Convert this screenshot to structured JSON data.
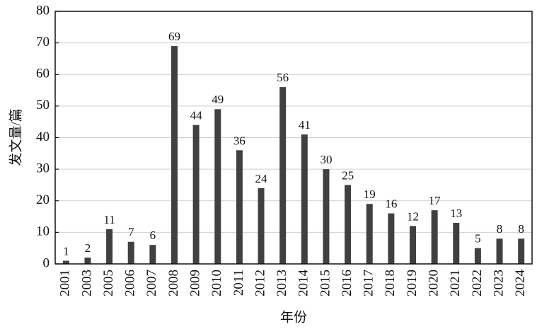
{
  "chart_data": {
    "type": "bar",
    "x_label": "年份",
    "y_label": "发文量/篇",
    "categories": [
      "2001",
      "2003",
      "2005",
      "2006",
      "2007",
      "2008",
      "2009",
      "2010",
      "2011",
      "2012",
      "2013",
      "2014",
      "2015",
      "2016",
      "2017",
      "2018",
      "2019",
      "2020",
      "2021",
      "2022",
      "2023",
      "2024"
    ],
    "values": [
      1,
      2,
      11,
      7,
      6,
      69,
      44,
      49,
      36,
      24,
      56,
      41,
      30,
      25,
      19,
      16,
      12,
      17,
      13,
      5,
      8,
      8
    ],
    "color": "#404040",
    "ylim": [
      0,
      80
    ],
    "yticks": [
      0,
      10,
      20,
      30,
      40,
      50,
      60,
      70,
      80
    ],
    "grid": true
  }
}
